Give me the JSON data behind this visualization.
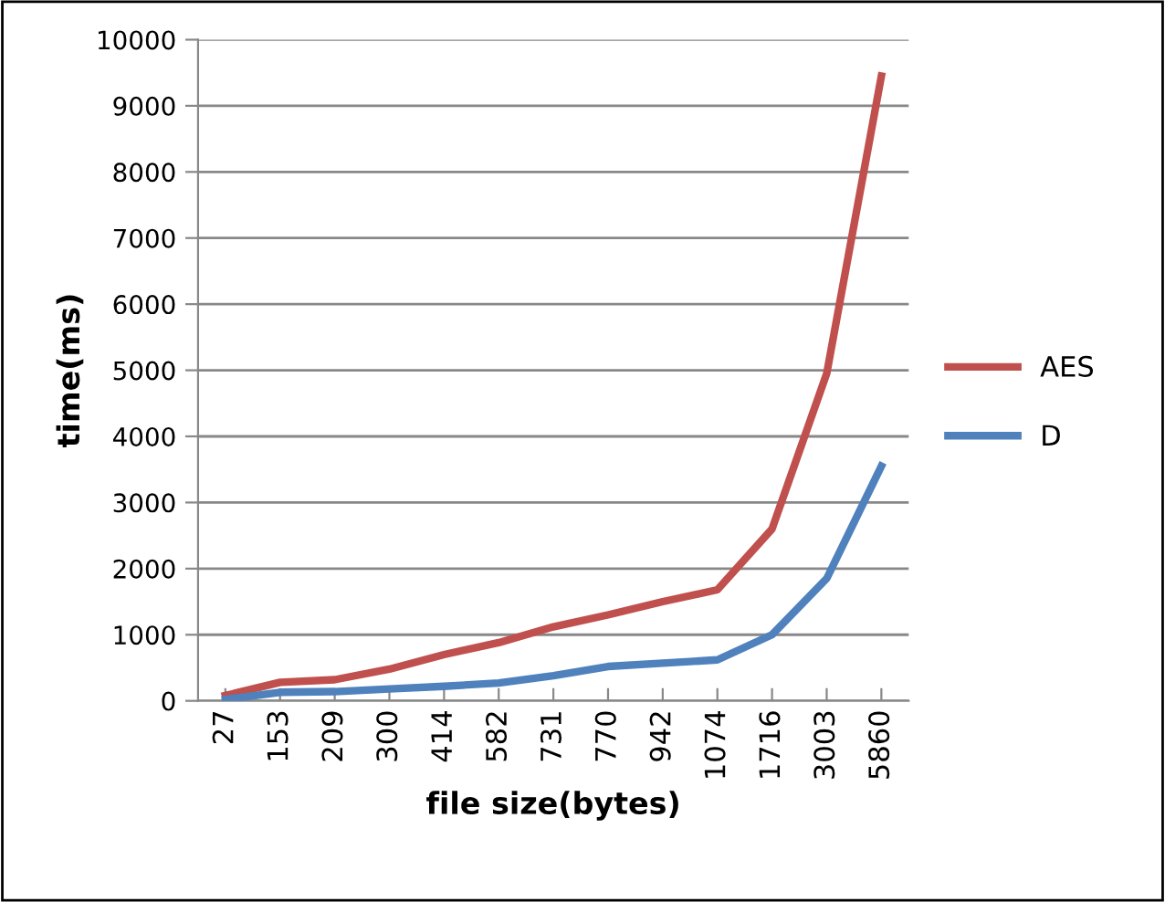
{
  "chart_data": {
    "type": "line",
    "xlabel": "file size(bytes)",
    "ylabel": "time(ms)",
    "categories": [
      "27",
      "153",
      "209",
      "300",
      "414",
      "582",
      "731",
      "770",
      "942",
      "1074",
      "1716",
      "3003",
      "5860"
    ],
    "series": [
      {
        "name": "AES",
        "color": "#c0504d",
        "values": [
          80,
          280,
          320,
          480,
          700,
          880,
          1120,
          1300,
          1500,
          1680,
          2600,
          4950,
          9450
        ]
      },
      {
        "name": "D",
        "color": "#4f81bd",
        "values": [
          20,
          130,
          140,
          180,
          220,
          270,
          380,
          520,
          570,
          620,
          1000,
          1850,
          3550
        ]
      }
    ],
    "ylim": [
      0,
      10000
    ],
    "yticks": [
      0,
      1000,
      2000,
      3000,
      4000,
      5000,
      6000,
      7000,
      8000,
      9000,
      10000
    ],
    "grid": "y",
    "legend": "right",
    "marker": "none",
    "line_style": "solid"
  }
}
